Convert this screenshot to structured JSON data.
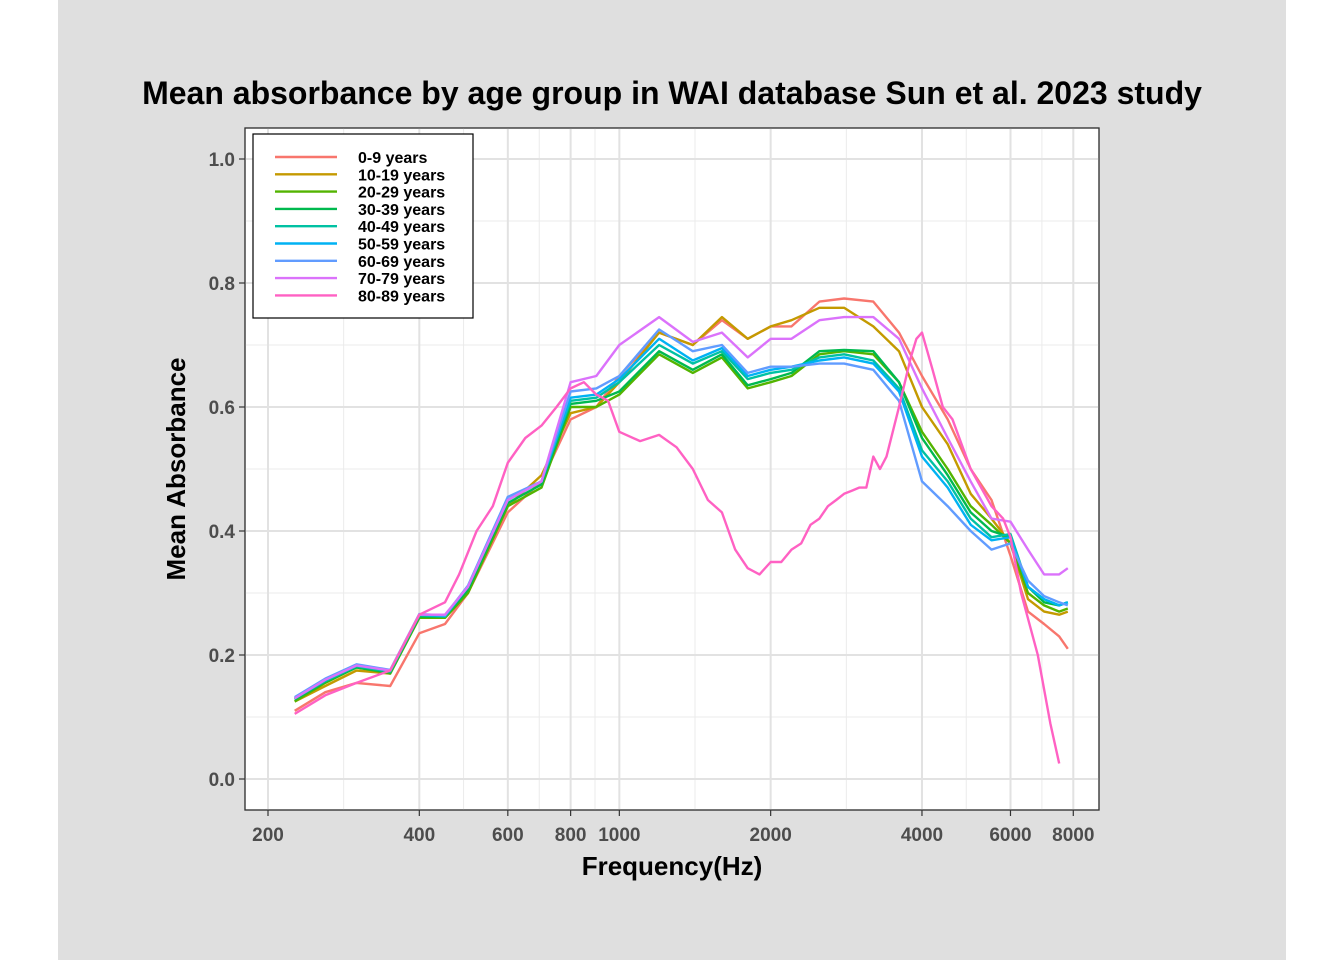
{
  "chart_data": {
    "type": "line",
    "title": "Mean absorbance by age group in WAI database Sun et al. 2023 study",
    "xlabel": "Frequency(Hz)",
    "ylabel": "Mean Absorbance",
    "x_scale": "log",
    "xlim": [
      180,
      9000
    ],
    "ylim": [
      -0.05,
      1.05
    ],
    "x_ticks": [
      200,
      400,
      600,
      800,
      1000,
      2000,
      4000,
      6000,
      8000
    ],
    "x_tick_labels": [
      "200",
      "400",
      "600",
      "800",
      "1000",
      "2000",
      "4000",
      "6000",
      "8000"
    ],
    "y_ticks": [
      0.0,
      0.2,
      0.4,
      0.6,
      0.8,
      1.0
    ],
    "y_tick_labels": [
      "0.0",
      "0.2",
      "0.4",
      "0.6",
      "0.8",
      "1.0"
    ],
    "grid": true,
    "legend_position": "top-left",
    "series": [
      {
        "name": "0-9 years",
        "color": "#F8766D",
        "x": [
          226,
          260,
          300,
          350,
          400,
          450,
          500,
          600,
          700,
          800,
          900,
          1000,
          1200,
          1400,
          1600,
          1800,
          2000,
          2200,
          2500,
          2800,
          3200,
          3600,
          4000,
          4500,
          5000,
          5500,
          6000,
          6500,
          7000,
          7500,
          7800
        ],
        "y": [
          0.11,
          0.14,
          0.155,
          0.15,
          0.235,
          0.25,
          0.3,
          0.43,
          0.48,
          0.58,
          0.6,
          0.65,
          0.72,
          0.7,
          0.74,
          0.71,
          0.73,
          0.73,
          0.77,
          0.775,
          0.77,
          0.72,
          0.65,
          0.58,
          0.5,
          0.45,
          0.36,
          0.27,
          0.25,
          0.23,
          0.21
        ]
      },
      {
        "name": "10-19 years",
        "color": "#C49A00",
        "x": [
          226,
          260,
          300,
          350,
          400,
          450,
          500,
          600,
          700,
          800,
          900,
          1000,
          1200,
          1400,
          1600,
          1800,
          2000,
          2200,
          2500,
          2800,
          3200,
          3600,
          4000,
          4500,
          5000,
          5500,
          6000,
          6500,
          7000,
          7500,
          7800
        ],
        "y": [
          0.125,
          0.15,
          0.175,
          0.17,
          0.26,
          0.26,
          0.3,
          0.44,
          0.49,
          0.59,
          0.6,
          0.64,
          0.72,
          0.7,
          0.745,
          0.71,
          0.73,
          0.74,
          0.76,
          0.76,
          0.73,
          0.69,
          0.6,
          0.54,
          0.46,
          0.42,
          0.38,
          0.29,
          0.27,
          0.265,
          0.27
        ]
      },
      {
        "name": "20-29 years",
        "color": "#53B400",
        "x": [
          226,
          260,
          300,
          350,
          400,
          450,
          500,
          600,
          700,
          800,
          900,
          1000,
          1200,
          1400,
          1600,
          1800,
          2000,
          2200,
          2500,
          2800,
          3200,
          3600,
          4000,
          4500,
          5000,
          5500,
          6000,
          6500,
          7000,
          7500,
          7800
        ],
        "y": [
          0.125,
          0.155,
          0.18,
          0.17,
          0.26,
          0.26,
          0.3,
          0.44,
          0.47,
          0.6,
          0.6,
          0.62,
          0.685,
          0.655,
          0.68,
          0.63,
          0.64,
          0.65,
          0.685,
          0.69,
          0.685,
          0.64,
          0.56,
          0.5,
          0.44,
          0.41,
          0.38,
          0.3,
          0.28,
          0.27,
          0.275
        ]
      },
      {
        "name": "30-39 years",
        "color": "#00B94F",
        "x": [
          226,
          260,
          300,
          350,
          400,
          450,
          500,
          600,
          700,
          800,
          900,
          1000,
          1200,
          1400,
          1600,
          1800,
          2000,
          2200,
          2500,
          2800,
          3200,
          3600,
          4000,
          4500,
          5000,
          5500,
          6000,
          6500,
          7000,
          7500,
          7800
        ],
        "y": [
          0.128,
          0.157,
          0.18,
          0.172,
          0.262,
          0.262,
          0.305,
          0.445,
          0.475,
          0.605,
          0.61,
          0.625,
          0.69,
          0.66,
          0.685,
          0.635,
          0.645,
          0.655,
          0.69,
          0.692,
          0.69,
          0.64,
          0.55,
          0.49,
          0.43,
          0.4,
          0.39,
          0.31,
          0.285,
          0.28,
          0.285
        ]
      },
      {
        "name": "40-49 years",
        "color": "#00C1A3",
        "x": [
          226,
          260,
          300,
          350,
          400,
          450,
          500,
          600,
          700,
          800,
          900,
          1000,
          1200,
          1400,
          1600,
          1800,
          2000,
          2200,
          2500,
          2800,
          3200,
          3600,
          4000,
          4500,
          5000,
          5500,
          6000,
          6500,
          7000,
          7500,
          7800
        ],
        "y": [
          0.13,
          0.158,
          0.182,
          0.173,
          0.264,
          0.262,
          0.31,
          0.45,
          0.48,
          0.61,
          0.615,
          0.64,
          0.7,
          0.67,
          0.69,
          0.645,
          0.655,
          0.66,
          0.68,
          0.685,
          0.675,
          0.63,
          0.53,
          0.48,
          0.42,
          0.39,
          0.395,
          0.31,
          0.29,
          0.28,
          0.285
        ]
      },
      {
        "name": "50-59 years",
        "color": "#00B2F3",
        "x": [
          226,
          260,
          300,
          350,
          400,
          450,
          500,
          600,
          700,
          800,
          900,
          1000,
          1200,
          1400,
          1600,
          1800,
          2000,
          2200,
          2500,
          2800,
          3200,
          3600,
          4000,
          4500,
          5000,
          5500,
          6000,
          6500,
          7000,
          7500,
          7800
        ],
        "y": [
          0.13,
          0.16,
          0.183,
          0.175,
          0.265,
          0.263,
          0.31,
          0.45,
          0.48,
          0.615,
          0.62,
          0.645,
          0.71,
          0.675,
          0.695,
          0.65,
          0.66,
          0.665,
          0.675,
          0.68,
          0.67,
          0.625,
          0.52,
          0.47,
          0.41,
          0.385,
          0.39,
          0.31,
          0.29,
          0.28,
          0.285
        ]
      },
      {
        "name": "60-69 years",
        "color": "#619CFF",
        "x": [
          226,
          260,
          300,
          350,
          400,
          450,
          500,
          600,
          700,
          800,
          900,
          1000,
          1200,
          1400,
          1600,
          1800,
          2000,
          2200,
          2500,
          2800,
          3200,
          3600,
          4000,
          4500,
          5000,
          5500,
          6000,
          6500,
          7000,
          7500,
          7800
        ],
        "y": [
          0.132,
          0.162,
          0.185,
          0.176,
          0.266,
          0.264,
          0.312,
          0.455,
          0.48,
          0.625,
          0.63,
          0.65,
          0.725,
          0.69,
          0.7,
          0.655,
          0.665,
          0.665,
          0.67,
          0.67,
          0.66,
          0.61,
          0.48,
          0.44,
          0.4,
          0.37,
          0.38,
          0.32,
          0.295,
          0.285,
          0.28
        ]
      },
      {
        "name": "70-79 years",
        "color": "#DB72FB",
        "x": [
          226,
          260,
          300,
          350,
          400,
          450,
          500,
          600,
          700,
          800,
          900,
          1000,
          1200,
          1400,
          1600,
          1800,
          2000,
          2200,
          2500,
          2800,
          3200,
          3600,
          4000,
          4500,
          5000,
          5500,
          6000,
          6500,
          7000,
          7500,
          7800
        ],
        "y": [
          0.13,
          0.16,
          0.183,
          0.175,
          0.265,
          0.265,
          0.31,
          0.45,
          0.48,
          0.64,
          0.65,
          0.7,
          0.745,
          0.705,
          0.72,
          0.68,
          0.71,
          0.71,
          0.74,
          0.745,
          0.745,
          0.71,
          0.63,
          0.55,
          0.48,
          0.42,
          0.415,
          0.37,
          0.33,
          0.33,
          0.34
        ]
      },
      {
        "name": "80-89 years",
        "color": "#FF61C3",
        "x": [
          226,
          260,
          300,
          350,
          400,
          450,
          480,
          520,
          560,
          600,
          650,
          700,
          750,
          800,
          850,
          900,
          950,
          1000,
          1100,
          1200,
          1300,
          1400,
          1500,
          1600,
          1700,
          1800,
          1900,
          2000,
          2100,
          2200,
          2300,
          2400,
          2500,
          2600,
          2700,
          2800,
          2900,
          3000,
          3100,
          3200,
          3300,
          3400,
          3600,
          3800,
          3900,
          4000,
          4200,
          4400,
          4600,
          5000,
          5500,
          5800,
          6000,
          6300,
          6800,
          7200,
          7500
        ],
        "y": [
          0.105,
          0.135,
          0.155,
          0.175,
          0.265,
          0.285,
          0.33,
          0.4,
          0.44,
          0.51,
          0.55,
          0.57,
          0.6,
          0.63,
          0.64,
          0.62,
          0.61,
          0.56,
          0.545,
          0.555,
          0.535,
          0.5,
          0.45,
          0.43,
          0.37,
          0.34,
          0.33,
          0.35,
          0.35,
          0.37,
          0.38,
          0.41,
          0.42,
          0.44,
          0.45,
          0.46,
          0.465,
          0.47,
          0.47,
          0.52,
          0.5,
          0.52,
          0.6,
          0.68,
          0.71,
          0.72,
          0.66,
          0.6,
          0.58,
          0.5,
          0.44,
          0.42,
          0.39,
          0.3,
          0.2,
          0.09,
          0.025
        ]
      }
    ]
  }
}
